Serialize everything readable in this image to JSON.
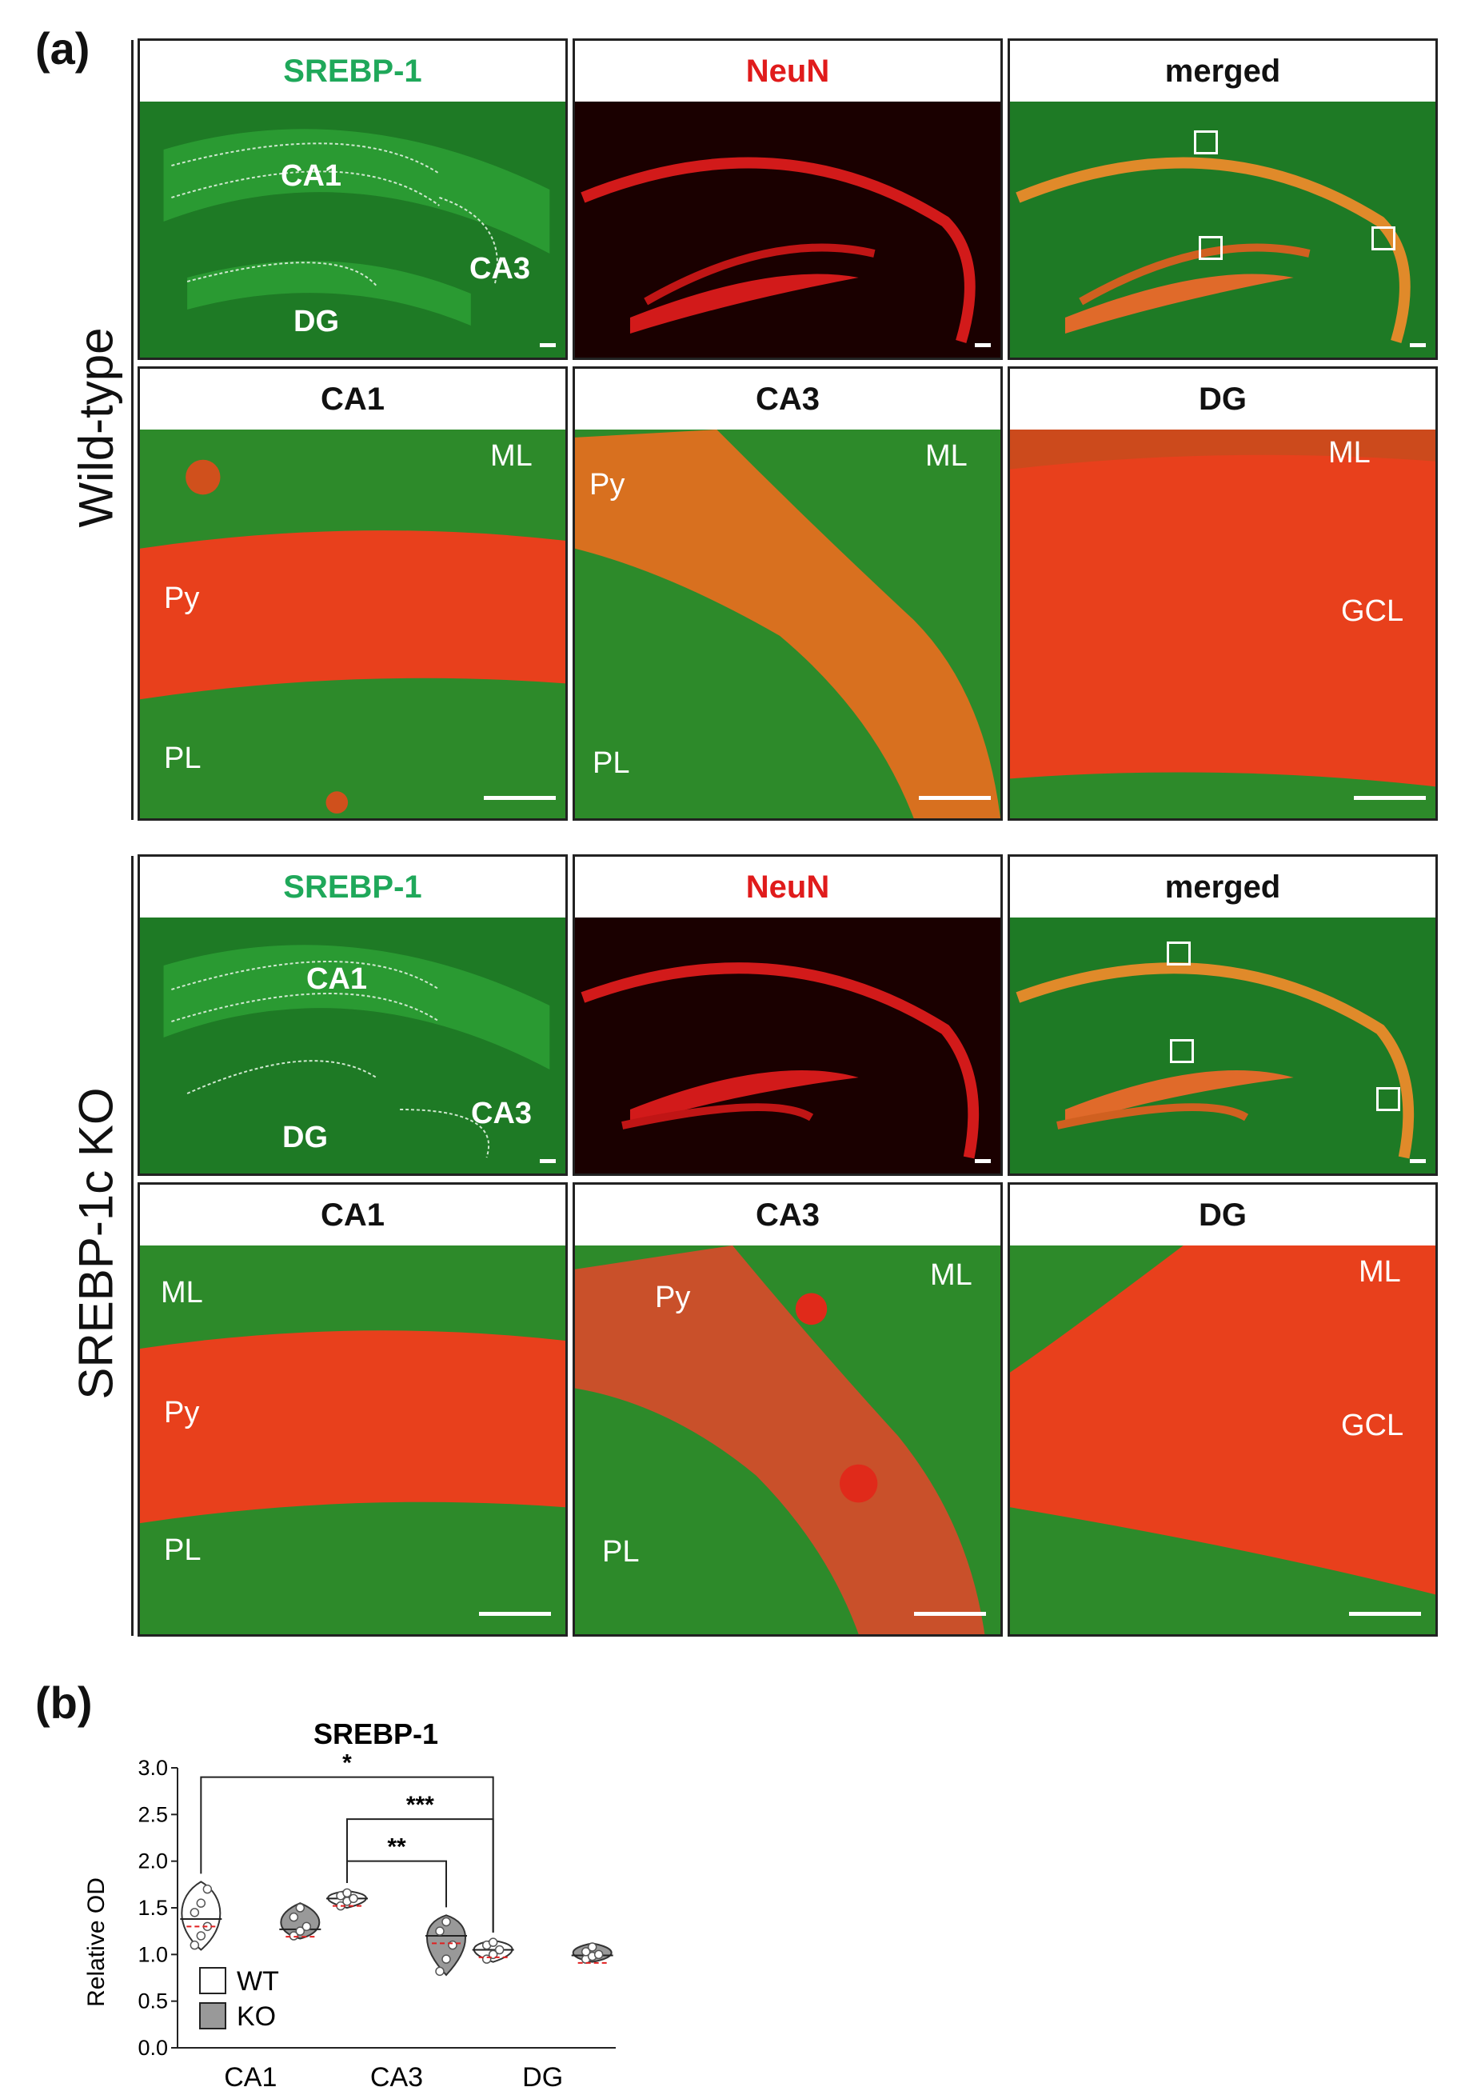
{
  "panel_a_label": "(a)",
  "panel_b_label": "(b)",
  "groups": [
    {
      "row_label": "Wild-type",
      "overview": [
        {
          "title": "SREBP-1",
          "regions": [
            "CA1",
            "CA3",
            "DG"
          ]
        },
        {
          "title": "NeuN"
        },
        {
          "title": "merged"
        }
      ],
      "zoom": [
        {
          "title": "CA1",
          "labels": [
            "ML",
            "Py",
            "PL"
          ]
        },
        {
          "title": "CA3",
          "labels": [
            "ML",
            "Py",
            "PL"
          ]
        },
        {
          "title": "DG",
          "labels": [
            "ML",
            "GCL"
          ]
        }
      ]
    },
    {
      "row_label": "SREBP-1c KO",
      "overview": [
        {
          "title": "SREBP-1",
          "regions": [
            "CA1",
            "DG",
            "CA3"
          ]
        },
        {
          "title": "NeuN"
        },
        {
          "title": "merged"
        }
      ],
      "zoom": [
        {
          "title": "CA1",
          "labels": [
            "ML",
            "Py",
            "PL"
          ]
        },
        {
          "title": "CA3",
          "labels": [
            "ML",
            "Py",
            "PL"
          ]
        },
        {
          "title": "DG",
          "labels": [
            "ML",
            "GCL"
          ]
        }
      ]
    }
  ],
  "colors": {
    "srebp_title": "#1fa85a",
    "neun_title": "#e01b1b",
    "median_line": "#e02020"
  },
  "chart_data": {
    "type": "violin",
    "title": "SREBP-1",
    "ylabel": "Relative OD",
    "xlabel": "",
    "categories": [
      "CA1",
      "CA3",
      "DG"
    ],
    "ylim": [
      0.0,
      3.0
    ],
    "yticks": [
      "0.0",
      "0.5",
      "1.0",
      "1.5",
      "2.0",
      "2.5",
      "3.0"
    ],
    "legend": [
      {
        "name": "WT",
        "fill": "#ffffff"
      },
      {
        "name": "KO",
        "fill": "#999999"
      }
    ],
    "legend_position": "bottom-left",
    "series": [
      {
        "name": "WT",
        "fill": "#ffffff",
        "groups": [
          {
            "category": "CA1",
            "median": 1.38,
            "min": 1.05,
            "max": 1.78,
            "points": [
              1.1,
              1.2,
              1.3,
              1.45,
              1.55,
              1.7
            ]
          },
          {
            "category": "CA3",
            "median": 1.6,
            "min": 1.5,
            "max": 1.68,
            "points": [
              1.52,
              1.57,
              1.6,
              1.63,
              1.66
            ]
          },
          {
            "category": "DG",
            "median": 1.05,
            "min": 0.92,
            "max": 1.15,
            "points": [
              0.95,
              1.0,
              1.05,
              1.1,
              1.13
            ]
          }
        ]
      },
      {
        "name": "KO",
        "fill": "#999999",
        "groups": [
          {
            "category": "CA1",
            "median": 1.27,
            "min": 1.17,
            "max": 1.55,
            "points": [
              1.2,
              1.25,
              1.3,
              1.4,
              1.5
            ]
          },
          {
            "category": "CA3",
            "median": 1.2,
            "min": 0.78,
            "max": 1.42,
            "points": [
              0.82,
              0.95,
              1.1,
              1.25,
              1.35
            ]
          },
          {
            "category": "DG",
            "median": 0.99,
            "min": 0.92,
            "max": 1.12,
            "points": [
              0.95,
              0.98,
              1.0,
              1.03,
              1.08
            ]
          }
        ]
      }
    ],
    "significance": [
      {
        "from": "CA1-WT",
        "to": "DG-WT",
        "label": "*"
      },
      {
        "from": "CA3-WT",
        "to": "DG-WT",
        "label": "***"
      },
      {
        "from": "CA3-WT",
        "to": "CA3-KO",
        "label": "**"
      }
    ]
  }
}
